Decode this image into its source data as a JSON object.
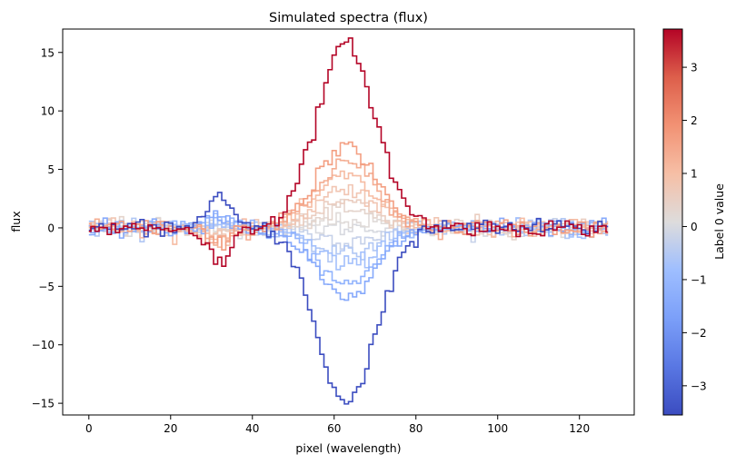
{
  "chart_data": {
    "type": "line",
    "drawstyle": "steps-mid",
    "title": "Simulated spectra (flux)",
    "xlabel": "pixel (wavelength)",
    "ylabel": "flux",
    "xlim": [
      -6.4,
      133.4
    ],
    "ylim": [
      -16.0,
      17.0
    ],
    "xticks": [
      0,
      20,
      40,
      60,
      80,
      100,
      120
    ],
    "yticks": [
      -15,
      -10,
      -5,
      0,
      5,
      10,
      15
    ],
    "grid": false,
    "colorbar": {
      "label": "Label 0 value",
      "colormap": "coolwarm",
      "range": [
        -3.55,
        3.72
      ],
      "ticks": [
        -3,
        -2,
        -1,
        0,
        1,
        2,
        3
      ]
    },
    "series_model": {
      "n_pixels": 128,
      "components": [
        {
          "center": 63,
          "sigma": 7.2,
          "amplitude_per_label": 4.2
        },
        {
          "center": 32,
          "sigma": 2.8,
          "amplitude_per_label": -0.8
        }
      ],
      "noise_amplitude": 0.35
    },
    "series_labels": [
      -3.55,
      -1.45,
      -1.15,
      -0.75,
      -0.55,
      -0.25,
      0.0,
      0.15,
      0.35,
      0.55,
      0.8,
      1.05,
      1.35,
      1.65,
      3.72
    ]
  }
}
